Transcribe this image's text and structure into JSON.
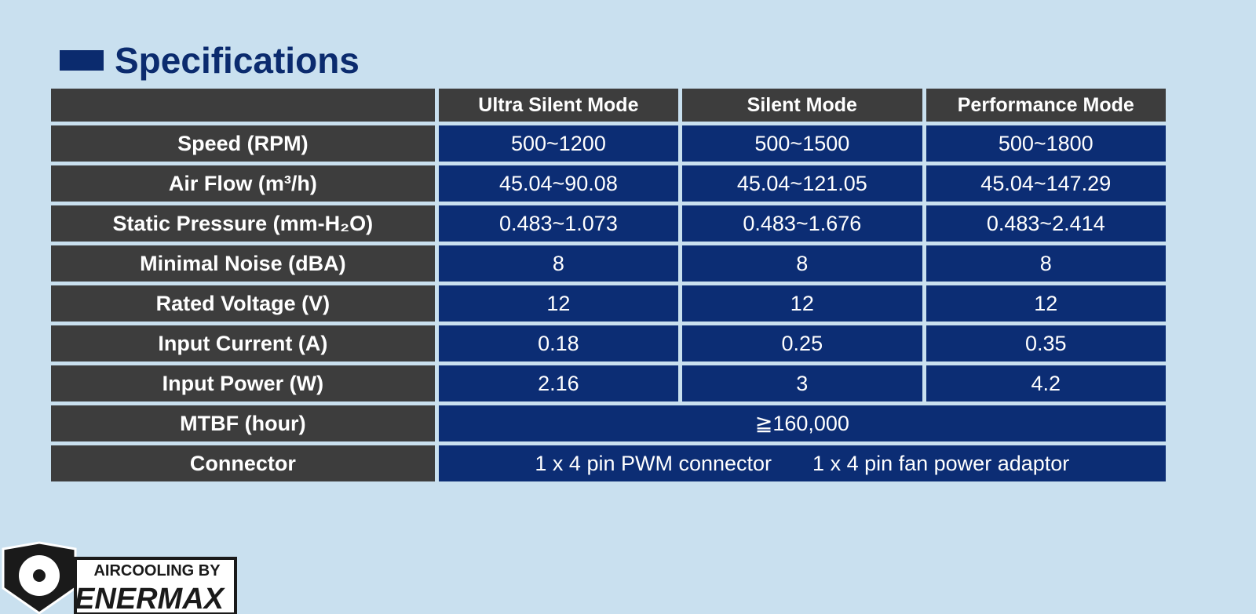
{
  "header": {
    "title": "Specifications"
  },
  "table": {
    "columns": [
      "Ultra Silent Mode",
      "Silent Mode",
      "Performance Mode"
    ],
    "rows": [
      {
        "label": "Speed (RPM)",
        "values": [
          "500~1200",
          "500~1500",
          "500~1800"
        ]
      },
      {
        "label": "Air Flow (m³/h)",
        "values": [
          "45.04~90.08",
          "45.04~121.05",
          "45.04~147.29"
        ]
      },
      {
        "label": "Static Pressure (mm-H₂O)",
        "values": [
          "0.483~1.073",
          "0.483~1.676",
          "0.483~2.414"
        ]
      },
      {
        "label": "Minimal Noise (dBA)",
        "values": [
          "8",
          "8",
          "8"
        ]
      },
      {
        "label": "Rated Voltage (V)",
        "values": [
          "12",
          "12",
          "12"
        ]
      },
      {
        "label": "Input Current (A)",
        "values": [
          "0.18",
          "0.25",
          "0.35"
        ]
      },
      {
        "label": "Input Power (W)",
        "values": [
          "2.16",
          "3",
          "4.2"
        ]
      },
      {
        "label": "MTBF (hour)",
        "values": [
          "≧160,000"
        ]
      },
      {
        "label": "Connector",
        "values": [
          "1 x 4 pin PWM connector",
          "1 x 4 pin fan power adaptor"
        ]
      }
    ]
  },
  "logo": {
    "tagline": "AIRCOOLING BY",
    "brand": "ENERMAX"
  }
}
